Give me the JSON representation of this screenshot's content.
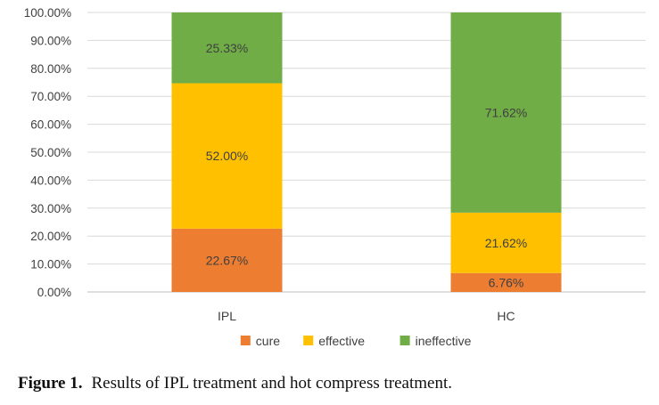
{
  "chart_data": {
    "type": "bar",
    "stacked": true,
    "categories": [
      "IPL",
      "HC"
    ],
    "series": [
      {
        "name": "cure",
        "color": "#ED7D31",
        "values": [
          22.67,
          6.76
        ],
        "labels": [
          "22.67%",
          "6.76%"
        ]
      },
      {
        "name": "effective",
        "color": "#FFC000",
        "values": [
          52.0,
          21.62
        ],
        "labels": [
          "52.00%",
          "21.62%"
        ]
      },
      {
        "name": "ineffective",
        "color": "#70AD47",
        "values": [
          25.33,
          71.62
        ],
        "labels": [
          "25.33%",
          "71.62%"
        ]
      }
    ],
    "ylim": [
      0,
      100
    ],
    "yticks": [
      0,
      10,
      20,
      30,
      40,
      50,
      60,
      70,
      80,
      90,
      100
    ],
    "ytick_labels": [
      "0.00%",
      "10.00%",
      "20.00%",
      "30.00%",
      "40.00%",
      "50.00%",
      "60.00%",
      "70.00%",
      "80.00%",
      "90.00%",
      "100.00%"
    ],
    "grid": true,
    "legend": "bottom",
    "xlabel": "",
    "ylabel": ""
  },
  "caption": {
    "prefix": "Figure 1.",
    "text": "Results of IPL treatment and hot compress treatment."
  }
}
